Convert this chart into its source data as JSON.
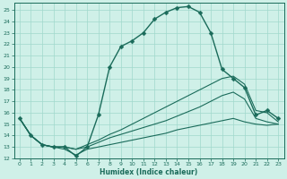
{
  "xlabel": "Humidex (Indice chaleur)",
  "ylabel": "",
  "bg_color": "#cff0e8",
  "grid_color": "#a0d8cc",
  "line_color": "#1a6b5a",
  "xlim": [
    -0.5,
    23.5
  ],
  "ylim": [
    12,
    25.6
  ],
  "yticks": [
    12,
    13,
    14,
    15,
    16,
    17,
    18,
    19,
    20,
    21,
    22,
    23,
    24,
    25
  ],
  "xticks": [
    0,
    1,
    2,
    3,
    4,
    5,
    6,
    7,
    8,
    9,
    10,
    11,
    12,
    13,
    14,
    15,
    16,
    17,
    18,
    19,
    20,
    21,
    22,
    23
  ],
  "series1_x": [
    0,
    1,
    2,
    3,
    4,
    5,
    6,
    7,
    8,
    9,
    10,
    11,
    12,
    13,
    14,
    15,
    16,
    17,
    18,
    19,
    20,
    21,
    22,
    23
  ],
  "series1_y": [
    15.5,
    14.0,
    13.2,
    13.0,
    13.0,
    12.2,
    13.0,
    15.8,
    20.0,
    21.8,
    22.3,
    23.0,
    24.2,
    24.8,
    25.2,
    25.3,
    24.8,
    23.0,
    19.8,
    19.0,
    18.2,
    15.8,
    16.2,
    15.5
  ],
  "series2_x": [
    0,
    1,
    2,
    3,
    4,
    5,
    6,
    7,
    8,
    9,
    10,
    11,
    12,
    13,
    14,
    15,
    16,
    17,
    18,
    19,
    20,
    21,
    22,
    23
  ],
  "series2_y": [
    15.5,
    14.0,
    13.2,
    13.0,
    13.0,
    12.8,
    13.2,
    13.6,
    14.1,
    14.5,
    15.0,
    15.5,
    16.0,
    16.5,
    17.0,
    17.5,
    18.0,
    18.5,
    19.0,
    19.2,
    18.5,
    16.2,
    16.0,
    15.2
  ],
  "series3_x": [
    0,
    1,
    2,
    3,
    4,
    5,
    6,
    7,
    8,
    9,
    10,
    11,
    12,
    13,
    14,
    15,
    16,
    17,
    18,
    19,
    20,
    21,
    22,
    23
  ],
  "series3_y": [
    15.5,
    14.0,
    13.2,
    13.0,
    13.0,
    12.8,
    13.0,
    13.4,
    13.8,
    14.1,
    14.4,
    14.7,
    15.0,
    15.3,
    15.7,
    16.1,
    16.5,
    17.0,
    17.5,
    17.8,
    17.2,
    15.5,
    15.2,
    15.0
  ],
  "series4_x": [
    0,
    1,
    2,
    3,
    4,
    5,
    6,
    7,
    8,
    9,
    10,
    11,
    12,
    13,
    14,
    15,
    16,
    17,
    18,
    19,
    20,
    21,
    22,
    23
  ],
  "series4_y": [
    15.5,
    14.0,
    13.2,
    13.0,
    12.8,
    12.3,
    12.8,
    13.0,
    13.2,
    13.4,
    13.6,
    13.8,
    14.0,
    14.2,
    14.5,
    14.7,
    14.9,
    15.1,
    15.3,
    15.5,
    15.2,
    15.0,
    14.9,
    15.0
  ],
  "markersize": 2.5,
  "linewidth_main": 1.0,
  "linewidth_other": 0.8
}
